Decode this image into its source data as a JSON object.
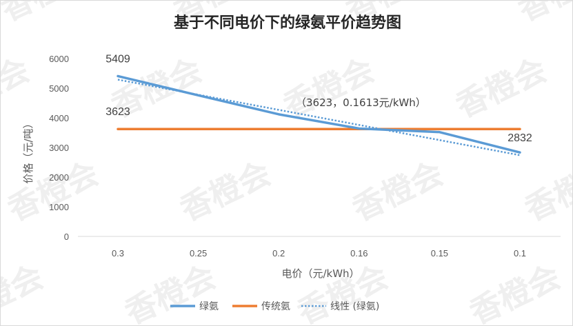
{
  "watermark": "香橙会",
  "chart_data": {
    "type": "line",
    "title": "基于不同电价下的绿氨平价趋势图",
    "xlabel": "电价（元/kWh）",
    "ylabel": "价格（元/吨）",
    "categories": [
      "0.3",
      "0.25",
      "0.2",
      "0.16",
      "0.15",
      "0.1"
    ],
    "ylim": [
      0,
      6000
    ],
    "yticks": [
      0,
      1000,
      2000,
      3000,
      4000,
      5000,
      6000
    ],
    "grid": false,
    "legend_position": "bottom",
    "series": [
      {
        "name": "绿氨",
        "values": [
          5409,
          4760,
          4120,
          3640,
          3520,
          2832
        ],
        "color": "#5b9bd5",
        "style": "solid"
      },
      {
        "name": "传统氨",
        "values": [
          3623,
          3623,
          3623,
          3623,
          3623,
          3623
        ],
        "color": "#ed7d31",
        "style": "solid"
      },
      {
        "name": "线性 (绿氨)",
        "values": [
          5290,
          4780,
          4270,
          3760,
          3250,
          2740
        ],
        "color": "#5b9bd5",
        "style": "dotted"
      }
    ],
    "data_labels": [
      {
        "series": 0,
        "index": 0,
        "text": "5409"
      },
      {
        "series": 1,
        "index": 0,
        "text": "3623"
      },
      {
        "series": 0,
        "index": 5,
        "text": "2832"
      }
    ],
    "annotations": [
      {
        "text": "（3623，0.1613元/kWh）"
      }
    ]
  }
}
